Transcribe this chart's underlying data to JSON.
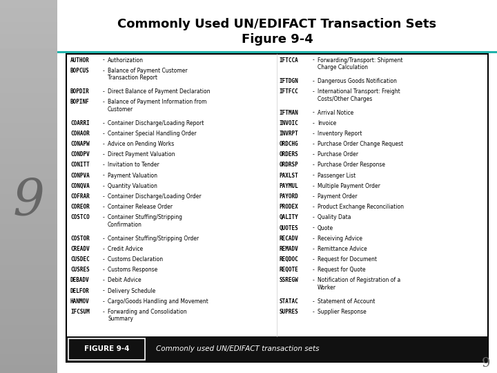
{
  "title_line1": "Commonly Used UN/EDIFACT Transaction Sets",
  "title_line2": "Figure 9-4",
  "page_number": "9",
  "sidebar_color_top": "#d0d0d0",
  "sidebar_color_bottom": "#a0a0a0",
  "teal_line_color": "#20b2aa",
  "left_col": [
    [
      "AUTHOR",
      "Authorization"
    ],
    [
      "BOPCUS",
      "Balance of Payment Customer\nTransaction Report"
    ],
    [
      "BOPDIR",
      "Direct Balance of Payment Declaration"
    ],
    [
      "BOPINF",
      "Balance of Payment Information from\nCustomer"
    ],
    [
      "COARRI",
      "Container Discharge/Loading Report"
    ],
    [
      "COHAOR",
      "Container Special Handling Order"
    ],
    [
      "CONAPW",
      "Advice on Pending Works"
    ],
    [
      "CONDPV",
      "Direct Payment Valuation"
    ],
    [
      "CONITT",
      "Invitation to Tender"
    ],
    [
      "CONPVA",
      "Payment Valuation"
    ],
    [
      "CONQVA",
      "Quantity Valuation"
    ],
    [
      "COFRAR",
      "Container Discharge/Loading Order"
    ],
    [
      "COREOR",
      "Container Release Order"
    ],
    [
      "COSTCO",
      "Container Stuffing/Stripping\nConfirmation"
    ],
    [
      "COSTOR",
      "Container Stuffing/Stripping Order"
    ],
    [
      "CREADV",
      "Credit Advice"
    ],
    [
      "CUSDEC",
      "Customs Declaration"
    ],
    [
      "CUSRES",
      "Customs Response"
    ],
    [
      "DEBADV",
      "Debit Advice"
    ],
    [
      "DELFOR",
      "Delivery Schedule"
    ],
    [
      "HANMOV",
      "Cargo/Goods Handling and Movement"
    ],
    [
      "IFCSUM",
      "Forwarding and Consolidation\nSummary"
    ]
  ],
  "right_col": [
    [
      "IFTCCA",
      "Forwarding/Transport: Shipment\nCharge Calculation"
    ],
    [
      "IFTDGN",
      "Dangerous Goods Notification"
    ],
    [
      "IFTFCC",
      "International Transport: Freight\nCosts/Other Charges"
    ],
    [
      "IFTMAN",
      "Arrival Notice"
    ],
    [
      "INVOIC",
      "Invoice"
    ],
    [
      "INVRPT",
      "Inventory Report"
    ],
    [
      "ORDCHG",
      "Purchase Order Change Request"
    ],
    [
      "ORDERS",
      "Purchase Order"
    ],
    [
      "ORDRSP",
      "Purchase Order Response"
    ],
    [
      "PAXLST",
      "Passenger List"
    ],
    [
      "PAYMUL",
      "Multiple Payment Order"
    ],
    [
      "PAYORD",
      "Payment Order"
    ],
    [
      "PRODEX",
      "Product Exchange Reconciliation"
    ],
    [
      "QALITY",
      "Quality Data"
    ],
    [
      "QUOTES",
      "Quote"
    ],
    [
      "RECADV",
      "Receiving Advice"
    ],
    [
      "REMADV",
      "Remittance Advice"
    ],
    [
      "REQDOC",
      "Request for Document"
    ],
    [
      "REQOTE",
      "Request for Quote"
    ],
    [
      "SSREGW",
      "Notification of Registration of a\nWorker"
    ],
    [
      "STATAC",
      "Statement of Account"
    ],
    [
      "SUPRES",
      "Supplier Response"
    ]
  ],
  "caption_label": "FIGURE 9-4",
  "caption_text": "Commonly used UN/EDIFACT transaction sets",
  "bg_color": "#ffffff",
  "gray_bg": "#c0c0c0",
  "table_border": "#000000",
  "caption_bg": "#111111"
}
